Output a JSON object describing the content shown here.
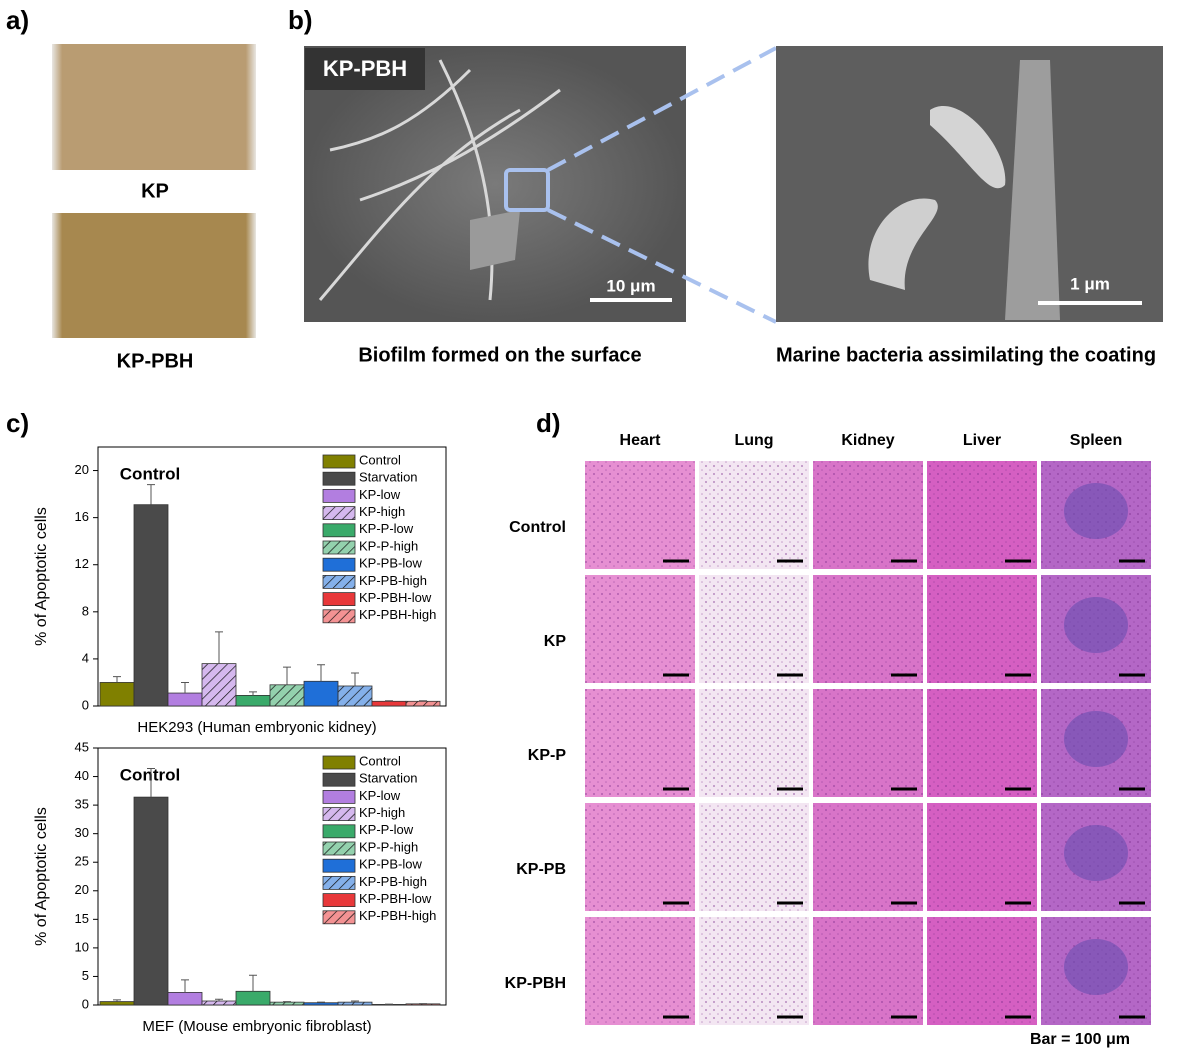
{
  "panel_labels": [
    "a)",
    "b)",
    "c)",
    "d)"
  ],
  "photos": {
    "labels": [
      "KP",
      "KP-PBH"
    ]
  },
  "sem": {
    "tag": "KP-PBH",
    "scale_bars": [
      "10 μm",
      "1 μm"
    ],
    "captions": [
      "Biofilm formed on the surface",
      "Marine bacteria assimilating the coating"
    ]
  },
  "histology": {
    "columns": [
      "Heart",
      "Lung",
      "Kidney",
      "Liver",
      "Spleen"
    ],
    "rows": [
      "Control",
      "KP",
      "KP-P",
      "KP-PB",
      "KP-PBH"
    ],
    "scale_note": "Bar = 100 μm"
  },
  "chart_data": [
    {
      "type": "bar",
      "annotation": "Control",
      "xlabel": "HEK293 (Human embryonic kidney)",
      "ylabel": "% of Apoptotic cells",
      "ylim": [
        0,
        22
      ],
      "yticks": [
        0,
        4,
        8,
        12,
        16,
        20
      ],
      "series": [
        {
          "name": "Control",
          "color": "#808000",
          "hatch": false,
          "values": [
            2.0
          ],
          "errors": [
            0.5
          ]
        },
        {
          "name": "Starvation",
          "color": "#4a4a4a",
          "hatch": false,
          "values": [
            17.1
          ],
          "errors": [
            1.7
          ]
        },
        {
          "name": "KP-low",
          "color": "#b27ee0",
          "hatch": false,
          "values": [
            1.1
          ],
          "errors": [
            0.9
          ]
        },
        {
          "name": "KP-high",
          "color": "#b27ee0",
          "hatch": true,
          "values": [
            3.6
          ],
          "errors": [
            2.7
          ]
        },
        {
          "name": "KP-P-low",
          "color": "#3aaa6a",
          "hatch": false,
          "values": [
            0.9
          ],
          "errors": [
            0.3
          ]
        },
        {
          "name": "KP-P-high",
          "color": "#3aaa6a",
          "hatch": true,
          "values": [
            1.8
          ],
          "errors": [
            1.5
          ]
        },
        {
          "name": "KP-PB-low",
          "color": "#1f6fd8",
          "hatch": false,
          "values": [
            2.1
          ],
          "errors": [
            1.4
          ]
        },
        {
          "name": "KP-PB-high",
          "color": "#1f6fd8",
          "hatch": true,
          "values": [
            1.7
          ],
          "errors": [
            1.1
          ]
        },
        {
          "name": "KP-PBH-low",
          "color": "#e8383a",
          "hatch": false,
          "values": [
            0.4
          ],
          "errors": [
            0.05
          ]
        },
        {
          "name": "KP-PBH-high",
          "color": "#e8383a",
          "hatch": true,
          "values": [
            0.4
          ],
          "errors": [
            0.05
          ]
        }
      ]
    },
    {
      "type": "bar",
      "annotation": "Control",
      "xlabel": "MEF (Mouse embryonic fibroblast)",
      "ylabel": "% of Apoptotic cells",
      "ylim": [
        0,
        45
      ],
      "yticks": [
        0,
        5,
        10,
        15,
        20,
        25,
        30,
        35,
        40,
        45
      ],
      "series": [
        {
          "name": "Control",
          "color": "#808000",
          "hatch": false,
          "values": [
            0.6
          ],
          "errors": [
            0.3
          ]
        },
        {
          "name": "Starvation",
          "color": "#4a4a4a",
          "hatch": false,
          "values": [
            36.4
          ],
          "errors": [
            5.0
          ]
        },
        {
          "name": "KP-low",
          "color": "#b27ee0",
          "hatch": false,
          "values": [
            2.2
          ],
          "errors": [
            2.2
          ]
        },
        {
          "name": "KP-high",
          "color": "#b27ee0",
          "hatch": true,
          "values": [
            0.7
          ],
          "errors": [
            0.3
          ]
        },
        {
          "name": "KP-P-low",
          "color": "#3aaa6a",
          "hatch": false,
          "values": [
            2.4
          ],
          "errors": [
            2.8
          ]
        },
        {
          "name": "KP-P-high",
          "color": "#3aaa6a",
          "hatch": true,
          "values": [
            0.5
          ],
          "errors": [
            0.1
          ]
        },
        {
          "name": "KP-PB-low",
          "color": "#1f6fd8",
          "hatch": false,
          "values": [
            0.4
          ],
          "errors": [
            0.1
          ]
        },
        {
          "name": "KP-PB-high",
          "color": "#1f6fd8",
          "hatch": true,
          "values": [
            0.5
          ],
          "errors": [
            0.2
          ]
        },
        {
          "name": "KP-PBH-low",
          "color": "#e8383a",
          "hatch": false,
          "values": [
            0.1
          ],
          "errors": [
            0.05
          ]
        },
        {
          "name": "KP-PBH-high",
          "color": "#e8383a",
          "hatch": true,
          "values": [
            0.2
          ],
          "errors": [
            0.05
          ]
        }
      ]
    }
  ]
}
